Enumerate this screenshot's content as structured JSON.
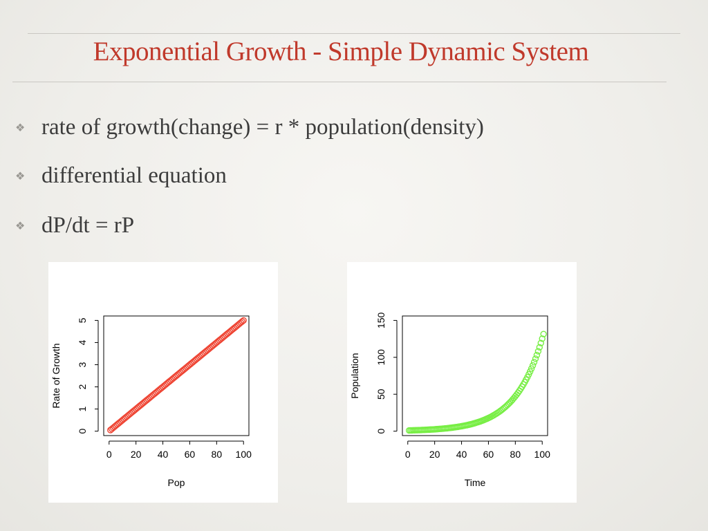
{
  "slide": {
    "title": "Exponential Growth - Simple Dynamic System",
    "bullets": [
      {
        "text": "rate of growth(change) = r * population(density)"
      },
      {
        "text": "differential equation"
      },
      {
        "text": "dP/dt = rP"
      }
    ],
    "bullet_icon": "diamond-bullet-icon"
  },
  "chart_data": [
    {
      "type": "scatter",
      "xlabel": "Pop",
      "ylabel": "Rate of Growth",
      "xlim": [
        0,
        100
      ],
      "ylim": [
        0,
        5
      ],
      "xticks": [
        0,
        20,
        40,
        60,
        80,
        100
      ],
      "yticks": [
        0,
        1,
        2,
        3,
        4,
        5
      ],
      "marker_color": "#ee4433",
      "grid": false,
      "series": [
        {
          "x_start": 1,
          "x_end": 100,
          "x_step": 1,
          "rule": "y = 0.05 * x"
        }
      ]
    },
    {
      "type": "scatter",
      "xlabel": "Time",
      "ylabel": "Population",
      "xlim": [
        0,
        100
      ],
      "ylim": [
        0,
        150
      ],
      "xticks": [
        0,
        20,
        40,
        60,
        80,
        100
      ],
      "yticks": [
        0,
        50,
        100,
        150
      ],
      "marker_color": "#77ee44",
      "grid": false,
      "series": [
        {
          "x_start": 1,
          "x_end": 101,
          "x_step": 1,
          "rule": "y = 1 * (1.05)^(x-1)"
        }
      ]
    }
  ]
}
